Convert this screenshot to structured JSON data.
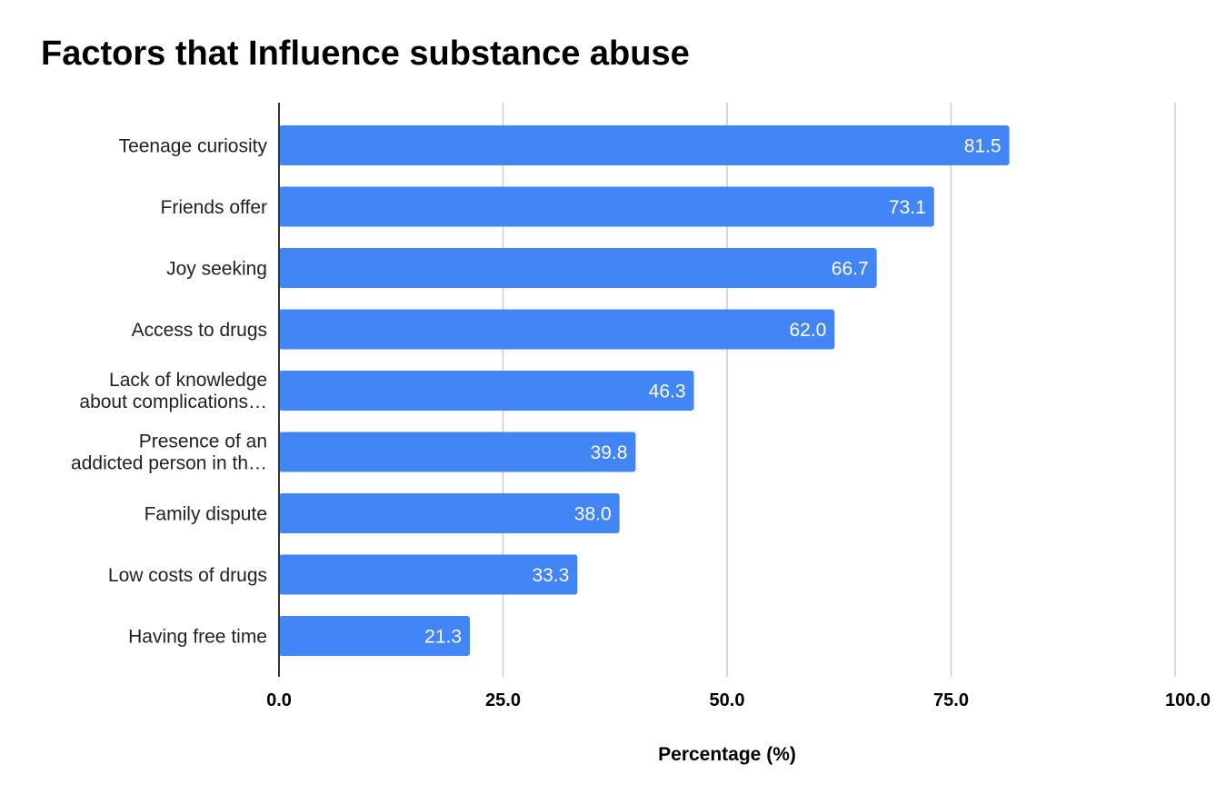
{
  "chart_data": {
    "type": "bar",
    "orientation": "horizontal",
    "title": "Factors that Influence substance abuse",
    "xlabel": "Percentage (%)",
    "ylabel": "",
    "categories": [
      [
        "Teenage curiosity"
      ],
      [
        "Friends offer"
      ],
      [
        "Joy seeking"
      ],
      [
        "Access to drugs"
      ],
      [
        "Lack of knowledge",
        "about complications…"
      ],
      [
        "Presence of an",
        "addicted person in th…"
      ],
      [
        "Family dispute"
      ],
      [
        "Low costs of drugs"
      ],
      [
        "Having free time"
      ]
    ],
    "values": [
      81.5,
      73.1,
      66.7,
      62.0,
      46.3,
      39.8,
      38.0,
      33.3,
      21.3
    ],
    "data_labels": [
      "81.5",
      "73.1",
      "66.7",
      "62.0",
      "46.3",
      "39.8",
      "38.0",
      "33.3",
      "21.3"
    ],
    "xlim": [
      0,
      100
    ],
    "xticks": [
      0,
      25,
      50,
      75,
      100
    ],
    "xtick_labels": [
      "0.0",
      "25.0",
      "50.0",
      "75.0",
      "100.0"
    ],
    "grid": true,
    "legend": "none",
    "colors": {
      "bar": "#4285f4",
      "grid": "#cccccc",
      "axis": "#333333"
    }
  }
}
